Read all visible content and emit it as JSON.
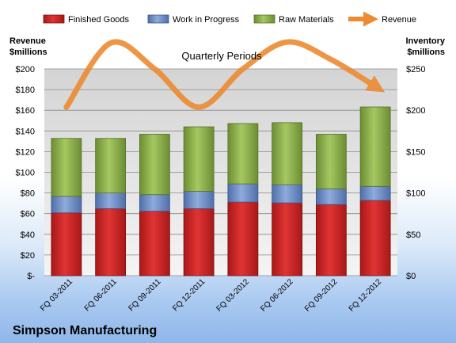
{
  "chart_data": {
    "type": "bar",
    "stacked": true,
    "title": "Quarterly Periods",
    "company": "Simpson Manufacturing",
    "ylabel_left": [
      "Revenue",
      "$millions"
    ],
    "ylabel_right": [
      "Inventory",
      "$millions"
    ],
    "categories": [
      "FQ 03-2011",
      "FQ 06-2011",
      "FQ 09-2011",
      "FQ 12-2011",
      "FQ 03-2012",
      "FQ 06-2012",
      "FQ 09-2012",
      "FQ 12-2012"
    ],
    "series": [
      {
        "name": "Finished Goods",
        "color": "#d62728",
        "axis": "right",
        "values": [
          76,
          81,
          78,
          81,
          89,
          88,
          86,
          91
        ]
      },
      {
        "name": "Work in Progress",
        "color": "#6f8fc9",
        "axis": "right",
        "values": [
          20,
          19,
          20,
          21,
          22,
          22,
          19,
          17
        ]
      },
      {
        "name": "Raw Materials",
        "color": "#8db14a",
        "axis": "right",
        "values": [
          70,
          66,
          73,
          78,
          73,
          75,
          66,
          96
        ]
      },
      {
        "name": "Revenue",
        "color": "#ed8b32",
        "axis": "left",
        "type": "line",
        "values": [
          163,
          225,
          200,
          163,
          200,
          226,
          209,
          183
        ]
      }
    ],
    "ylim_left": [
      0,
      200
    ],
    "yticks_left": [
      "$-",
      "$20",
      "$40",
      "$60",
      "$80",
      "$100",
      "$120",
      "$140",
      "$160",
      "$180",
      "$200"
    ],
    "ylim_right": [
      0,
      250
    ],
    "yticks_right": [
      "$0",
      "$50",
      "$100",
      "$150",
      "$200",
      "$250"
    ],
    "grid": true,
    "legend": "top"
  }
}
